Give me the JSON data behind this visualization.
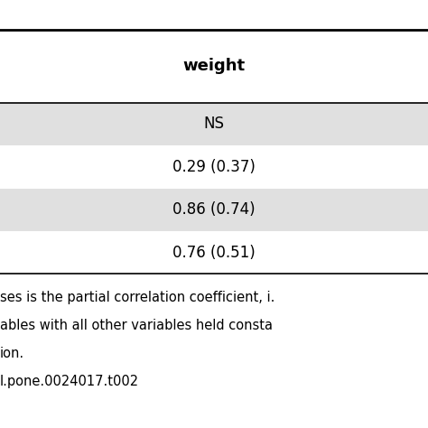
{
  "header": "weight",
  "rows": [
    {
      "label": "",
      "value": "NS",
      "shaded": true
    },
    {
      "label": "",
      "value": "0.29 (0.37)",
      "shaded": false
    },
    {
      "label": "",
      "value": "0.86 (0.74)",
      "shaded": true
    },
    {
      "label": "",
      "value": "0.76 (0.51)",
      "shaded": false
    }
  ],
  "footer_lines": [
    "ses is the partial correlation coefficient, i.",
    "ables with all other variables held consta",
    "ion.",
    "l.pone.0024017.t002"
  ],
  "bg_color": "#ffffff",
  "shaded_color": "#e0e0e0",
  "header_line_color": "#000000",
  "text_color": "#000000",
  "header_fontsize": 13,
  "cell_fontsize": 12,
  "footer_fontsize": 10.5
}
